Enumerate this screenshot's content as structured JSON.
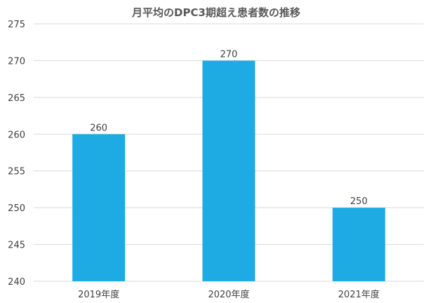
{
  "chart_data": {
    "type": "bar",
    "title": "月平均のDPC3期超え患者数の推移",
    "categories": [
      "2019年度",
      "2020年度",
      "2021年度"
    ],
    "series": [
      {
        "values": [
          260,
          270,
          250
        ],
        "color": "#1EABE3"
      }
    ],
    "data_labels": [
      "260",
      "270",
      "250"
    ],
    "ylim": [
      240,
      275
    ],
    "y_ticks": [
      240,
      245,
      250,
      255,
      260,
      265,
      270,
      275
    ],
    "y_tick_labels": [
      "240",
      "245",
      "250",
      "255",
      "260",
      "265",
      "270",
      "275"
    ],
    "xlabel": "",
    "ylabel": "",
    "grid": true,
    "legend": "none",
    "colors": {
      "bar": "#1EABE3",
      "grid": "#D9D9D9",
      "text": "#404040",
      "title": "#595959"
    }
  }
}
